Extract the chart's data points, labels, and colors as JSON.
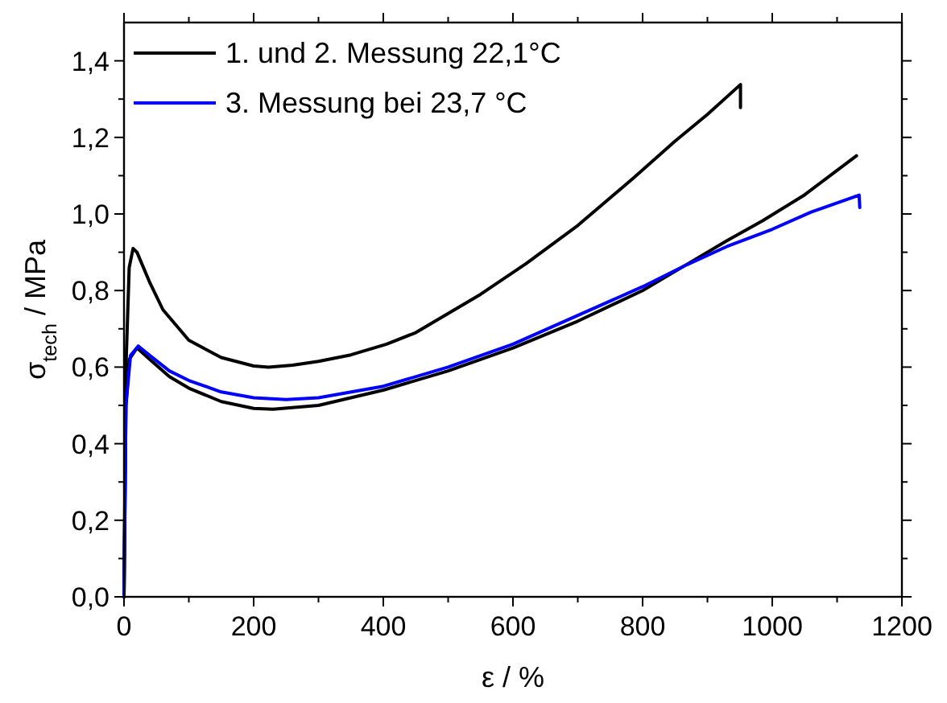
{
  "chart_data": {
    "type": "line",
    "xlabel": "ε / %",
    "ylabel": "σ$_{tech}$ / MPa",
    "xlim": [
      0,
      1200
    ],
    "xticks": [
      0,
      {
        "value": 100,
        "label": null
      },
      200,
      {
        "value": 300,
        "label": null
      },
      400,
      {
        "value": 500,
        "label": null
      },
      600,
      {
        "value": 700,
        "label": null
      },
      800,
      {
        "value": 900,
        "label": null
      },
      1000,
      {
        "value": 1100,
        "label": null
      },
      1200
    ],
    "ylim": [
      0,
      1.5
    ],
    "yticks": [
      {
        "value": 0,
        "label": "0,0"
      },
      {
        "value": 0.1,
        "label": null
      },
      {
        "value": 0.2,
        "label": "0,2"
      },
      {
        "value": 0.3,
        "label": null
      },
      {
        "value": 0.4,
        "label": "0,4"
      },
      {
        "value": 0.5,
        "label": null
      },
      {
        "value": 0.6,
        "label": "0,6"
      },
      {
        "value": 0.7,
        "label": null
      },
      {
        "value": 0.8,
        "label": "0,8"
      },
      {
        "value": 0.9,
        "label": null
      },
      {
        "value": 1.0,
        "label": "1,0"
      },
      {
        "value": 1.1,
        "label": null
      },
      {
        "value": 1.2,
        "label": "1,2"
      },
      {
        "value": 1.3,
        "label": null
      },
      {
        "value": 1.4,
        "label": "1,4"
      }
    ],
    "grid": false,
    "legend": "top left",
    "line_style": "solid",
    "series": [
      {
        "name": "1. und 2. Messung 22,1°C",
        "color": "#000000",
        "x": [
          0,
          3,
          8,
          14,
          20,
          40,
          60,
          100,
          150,
          200,
          223,
          260,
          300,
          350,
          405,
          450,
          500,
          550,
          620,
          700,
          786,
          850,
          900,
          951,
          951
        ],
        "values": [
          0,
          0.6,
          0.86,
          0.91,
          0.9,
          0.82,
          0.75,
          0.67,
          0.625,
          0.603,
          0.6,
          0.605,
          0.615,
          0.632,
          0.66,
          0.69,
          0.74,
          0.79,
          0.87,
          0.97,
          1.094,
          1.19,
          1.26,
          1.338,
          1.278
        ]
      },
      {
        "color": "#000000",
        "x": [
          0,
          3,
          8,
          20,
          40,
          70,
          100,
          150,
          200,
          230,
          300,
          400,
          500,
          600,
          700,
          800,
          870,
          930,
          985,
          1050,
          1130
        ],
        "values": [
          0,
          0.5,
          0.62,
          0.65,
          0.62,
          0.575,
          0.545,
          0.51,
          0.492,
          0.49,
          0.5,
          0.54,
          0.59,
          0.65,
          0.72,
          0.8,
          0.87,
          0.93,
          0.982,
          1.05,
          1.152
        ]
      },
      {
        "name": "3. Messung bei 23,7 °C",
        "color": "#0000ff",
        "x": [
          0,
          3,
          10,
          22,
          40,
          70,
          100,
          150,
          200,
          250,
          300,
          400,
          500,
          600,
          700,
          800,
          869,
          930,
          1000,
          1060,
          1134,
          1135
        ],
        "values": [
          0,
          0.5,
          0.63,
          0.655,
          0.63,
          0.59,
          0.565,
          0.535,
          0.52,
          0.515,
          0.52,
          0.55,
          0.6,
          0.66,
          0.735,
          0.81,
          0.868,
          0.915,
          0.96,
          1.005,
          1.049,
          1.017
        ]
      }
    ]
  }
}
